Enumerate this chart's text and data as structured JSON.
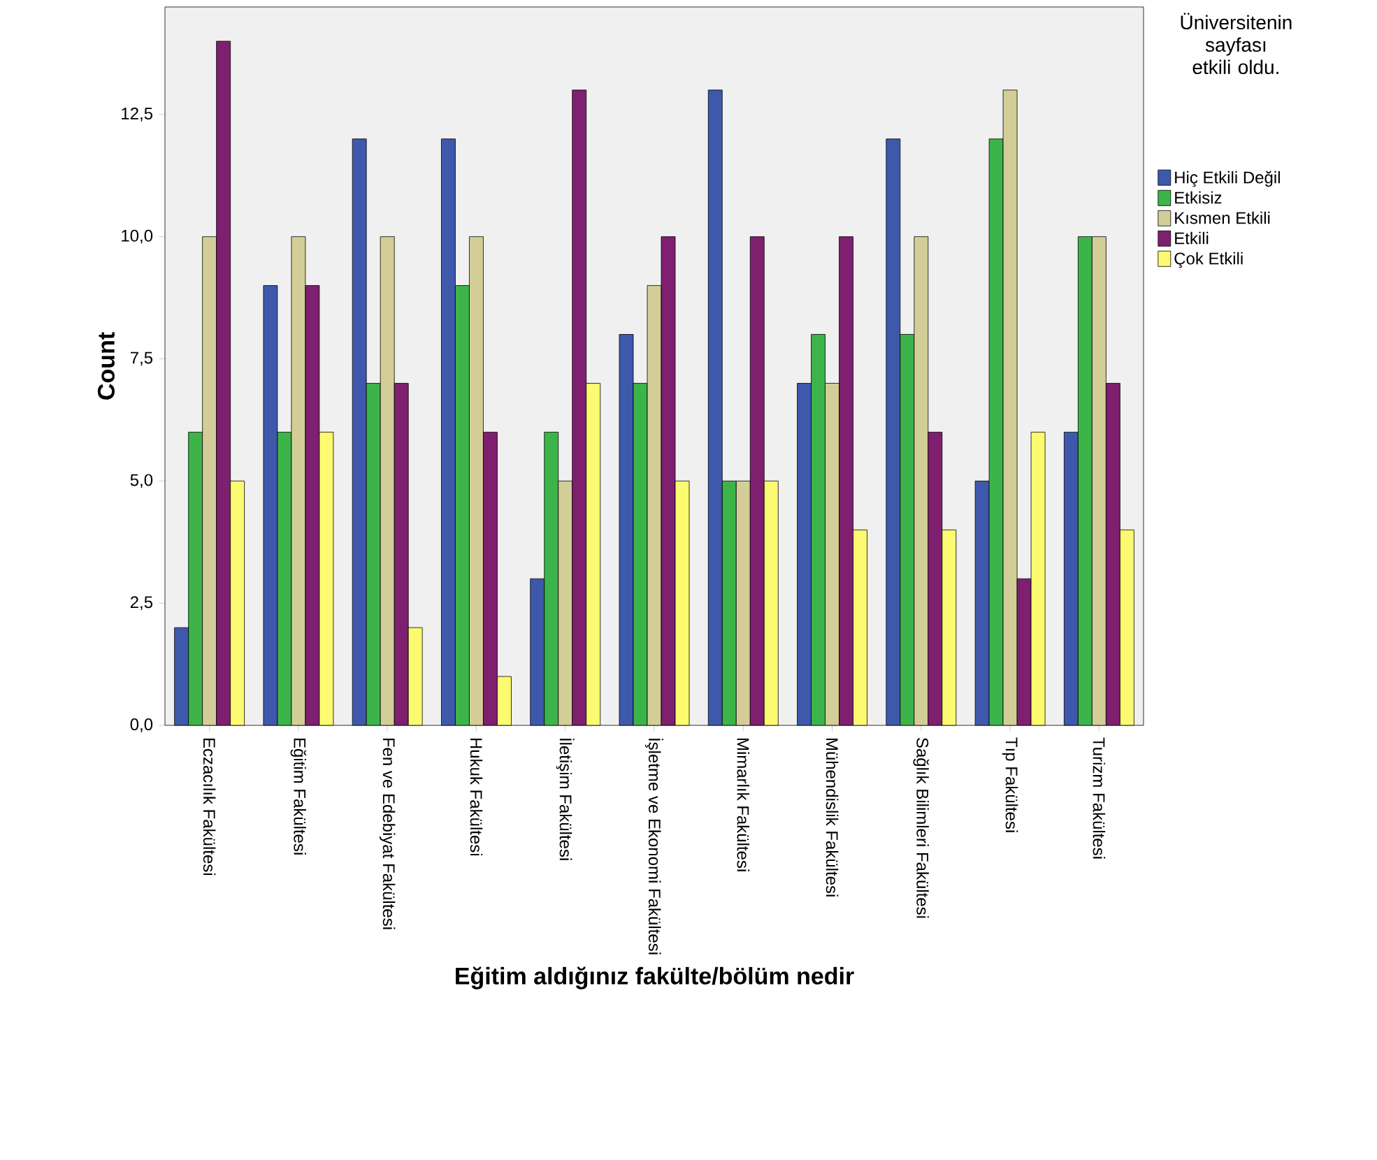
{
  "chart_data": {
    "type": "bar",
    "xlabel": "Eğitim aldığınız fakülte/bölüm nedir",
    "ylabel": "Count",
    "legend_title": "Üniversitenin sayfası etkili oldu.",
    "legend": "right",
    "categories": [
      "Eczacılık Fakültesi",
      "Eğitim Fakültesi",
      "Fen ve Edebiyat Fakültesi",
      "Hukuk Fakültesi",
      "İletişim Fakültesi",
      "İşletme ve Ekonomi Fakültesi",
      "Mimarlık Fakültesi",
      "Mühendislik Fakültesi",
      "Sağlık Bilimleri Fakültesi",
      "Tıp Fakültesi",
      "Turizm Fakültesi"
    ],
    "series": [
      {
        "name": "Hiç Etkili Değil",
        "color": "#3e58ac",
        "values": [
          2,
          9,
          12,
          12,
          3,
          8,
          13,
          7,
          12,
          5,
          6
        ]
      },
      {
        "name": "Etkisiz",
        "color": "#3cb449",
        "values": [
          6,
          6,
          7,
          9,
          6,
          7,
          5,
          8,
          8,
          12,
          10
        ]
      },
      {
        "name": "Kısmen Etkili",
        "color": "#d3ce97",
        "values": [
          10,
          10,
          10,
          10,
          5,
          9,
          5,
          7,
          10,
          13,
          10
        ]
      },
      {
        "name": "Etkili",
        "color": "#7e1f6f",
        "values": [
          14,
          9,
          7,
          6,
          13,
          10,
          10,
          10,
          6,
          3,
          7
        ]
      },
      {
        "name": "Çok Etkili",
        "color": "#fcfa70",
        "values": [
          5,
          6,
          2,
          1,
          7,
          5,
          5,
          4,
          4,
          6,
          4
        ]
      }
    ],
    "ylim": [
      0,
      14.7
    ],
    "yticks": [
      {
        "value": 0,
        "label": "0,0"
      },
      {
        "value": 2.5,
        "label": "2,5"
      },
      {
        "value": 5,
        "label": "5,0"
      },
      {
        "value": 7.5,
        "label": "7,5"
      },
      {
        "value": 10,
        "label": "10,0"
      },
      {
        "value": 12.5,
        "label": "12,5"
      }
    ]
  }
}
